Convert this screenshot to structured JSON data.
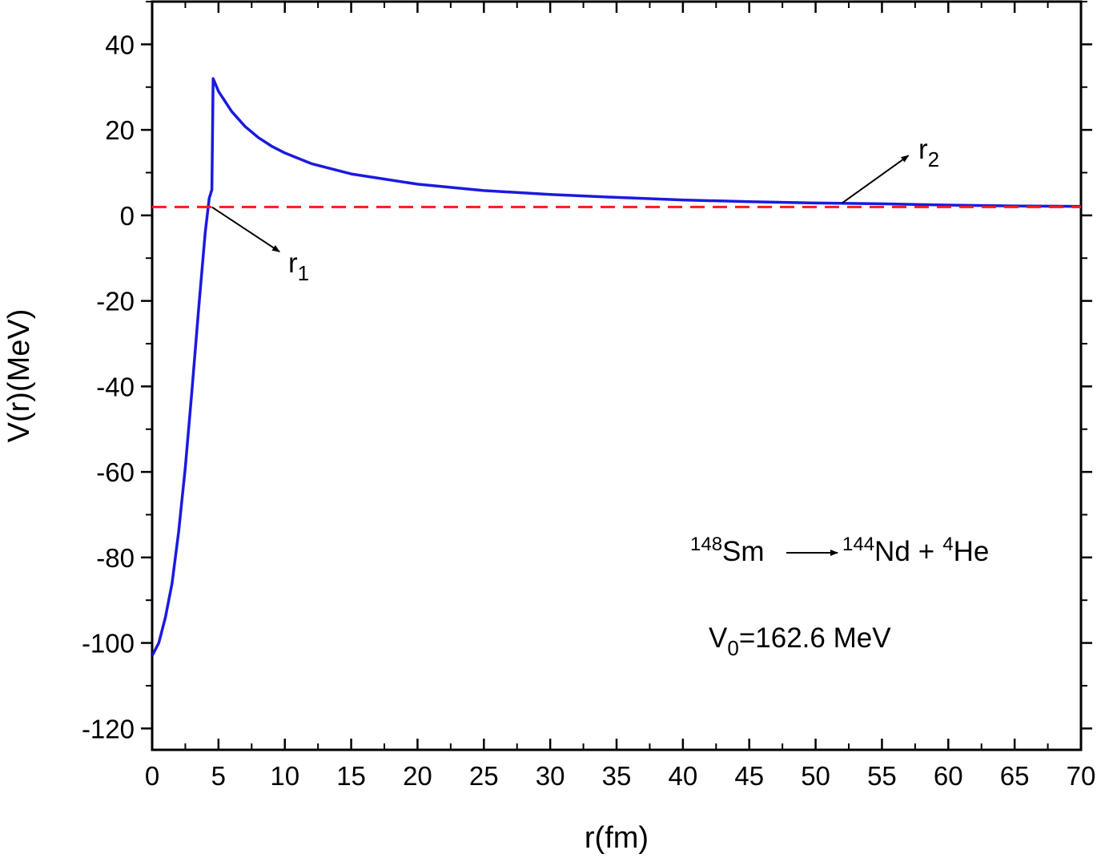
{
  "chart_data": {
    "type": "line",
    "xlabel": "r(fm)",
    "ylabel": "V(r)(MeV)",
    "xlim": [
      0,
      70
    ],
    "ylim": [
      -125,
      50
    ],
    "x_ticks": [
      0,
      5,
      10,
      15,
      20,
      25,
      30,
      35,
      40,
      45,
      50,
      55,
      60,
      65,
      70
    ],
    "y_ticks": [
      -120,
      -100,
      -80,
      -60,
      -40,
      -20,
      0,
      20,
      40
    ],
    "grid": false,
    "colors": {
      "potential": "#1a1ae0",
      "energy": "#ff1a1a",
      "frame": "#000000"
    },
    "series": [
      {
        "style": "solid",
        "color": "#1a1ae0",
        "x": [
          0,
          0.5,
          1.0,
          1.5,
          2.0,
          2.5,
          3.0,
          3.5,
          4.0,
          4.3,
          4.5,
          4.6,
          5,
          6,
          7,
          8,
          9,
          10,
          12,
          15,
          20,
          25,
          30,
          35,
          40,
          45,
          50,
          55,
          60,
          65,
          70
        ],
        "y": [
          -103,
          -100,
          -94,
          -86,
          -74,
          -59,
          -41,
          -22,
          -4,
          4,
          6,
          32,
          29,
          24.3,
          20.8,
          18.2,
          16.2,
          14.6,
          12.1,
          9.7,
          7.3,
          5.8,
          4.9,
          4.2,
          3.6,
          3.2,
          2.9,
          2.7,
          2.4,
          2.2,
          2.1
        ]
      },
      {
        "style": "dashed",
        "color": "#ff1a1a",
        "x": [
          0,
          70
        ],
        "y": [
          1.95,
          1.95
        ]
      }
    ],
    "annotations": {
      "r1": {
        "label": "r",
        "sub": "1",
        "point": [
          4.5,
          1.95
        ],
        "arrow_to": [
          9.6,
          -8.5
        ]
      },
      "r2": {
        "label": "r",
        "sub": "2",
        "point": [
          52,
          2.9
        ],
        "arrow_to": [
          57,
          14
        ]
      },
      "reaction": {
        "parent_mass": "148",
        "parent": "Sm",
        "daughter_mass": "144",
        "daughter": "Nd",
        "plus": "+",
        "alpha_mass": "4",
        "alpha": "He"
      },
      "v0": {
        "prefix": "V",
        "sub": "0",
        "value": "=162.6 MeV"
      }
    }
  }
}
